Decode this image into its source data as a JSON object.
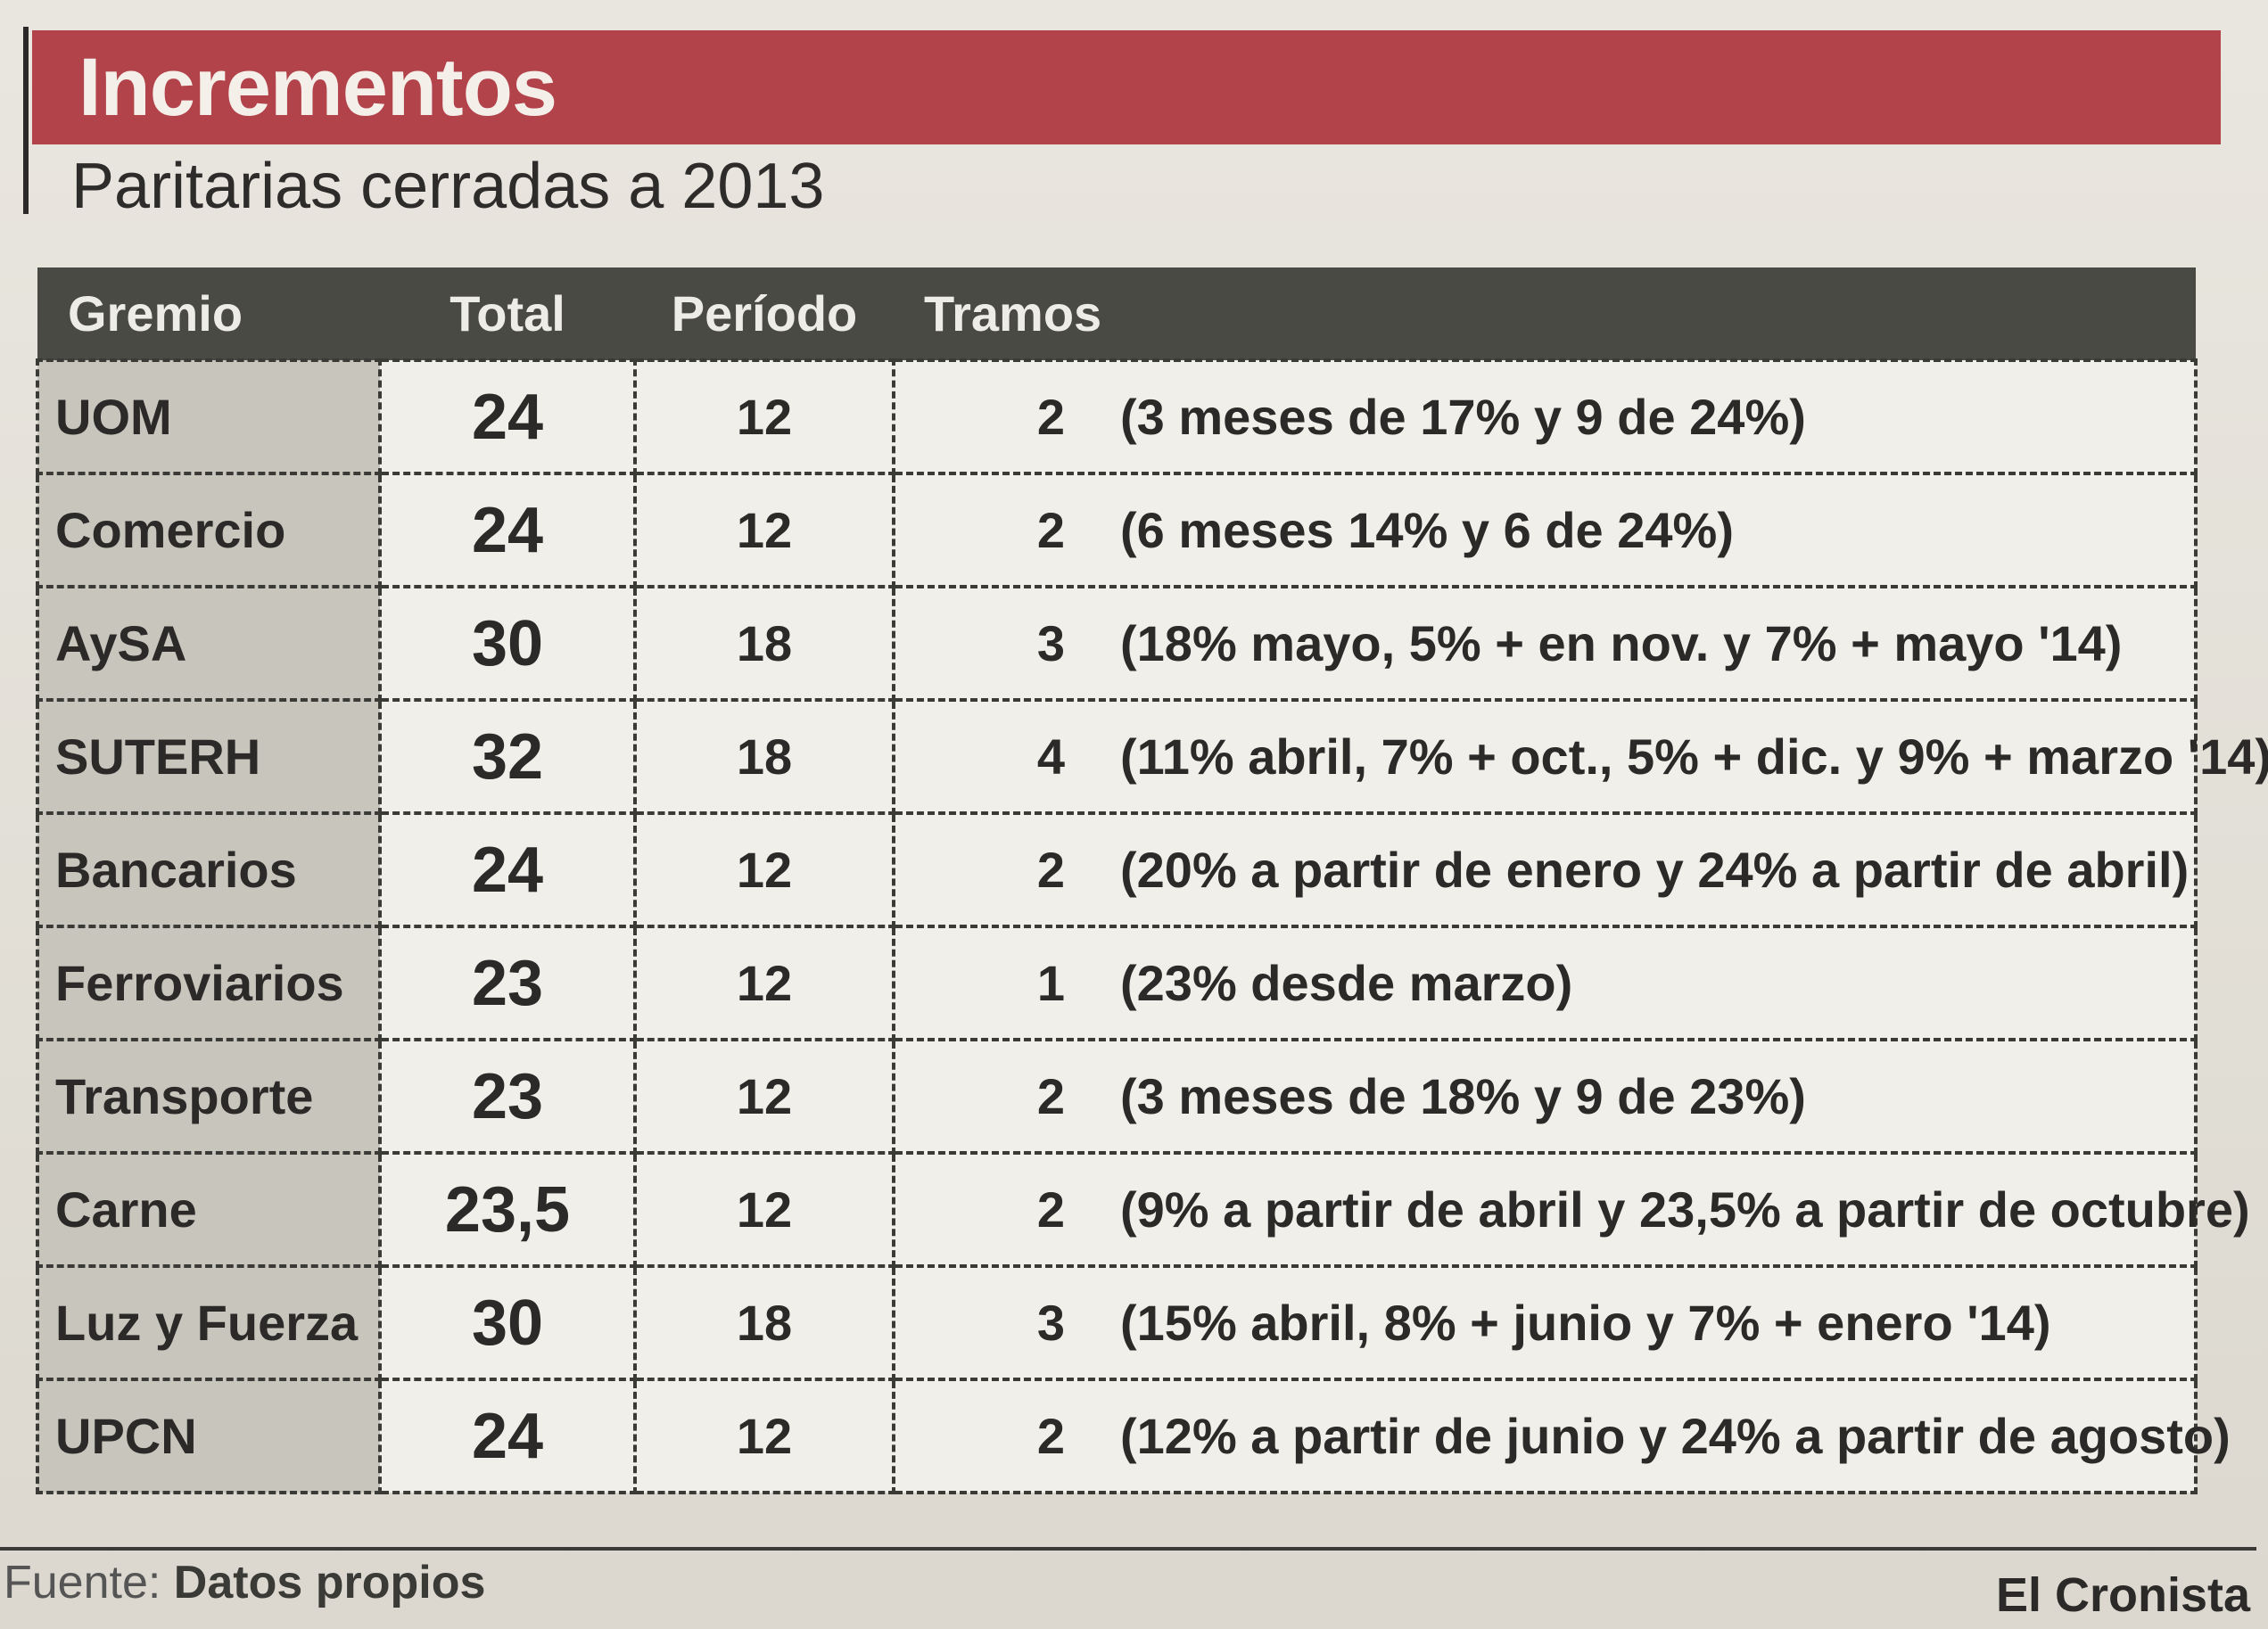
{
  "header": {
    "title": "Incrementos",
    "subtitle": "Paritarias cerradas a 2013"
  },
  "chart_data": {
    "type": "table",
    "columns": [
      "Gremio",
      "Total",
      "Período",
      "Tramos"
    ],
    "rows": [
      {
        "gremio": "UOM",
        "total": "24",
        "periodo": "12",
        "tramos": "2",
        "detalle": "(3 meses de 17% y 9 de 24%)"
      },
      {
        "gremio": "Comercio",
        "total": "24",
        "periodo": "12",
        "tramos": "2",
        "detalle": "(6 meses 14% y 6 de 24%)"
      },
      {
        "gremio": "AySA",
        "total": "30",
        "periodo": "18",
        "tramos": "3",
        "detalle": "(18% mayo, 5% + en nov. y 7% + mayo '14)"
      },
      {
        "gremio": "SUTERH",
        "total": "32",
        "periodo": "18",
        "tramos": "4",
        "detalle": "(11% abril, 7% + oct., 5% + dic. y 9% + marzo '14)"
      },
      {
        "gremio": "Bancarios",
        "total": "24",
        "periodo": "12",
        "tramos": "2",
        "detalle": "(20% a partir de enero y 24% a partir de abril)"
      },
      {
        "gremio": "Ferroviarios",
        "total": "23",
        "periodo": "12",
        "tramos": "1",
        "detalle": "(23% desde marzo)"
      },
      {
        "gremio": "Transporte",
        "total": "23",
        "periodo": "12",
        "tramos": "2",
        "detalle": "(3 meses de 18% y 9 de 23%)"
      },
      {
        "gremio": "Carne",
        "total": "23,5",
        "periodo": "12",
        "tramos": "2",
        "detalle": "(9% a partir de abril y 23,5% a partir de octubre)"
      },
      {
        "gremio": "Luz y Fuerza",
        "total": "30",
        "periodo": "18",
        "tramos": "3",
        "detalle": "(15% abril, 8% + junio y 7% + enero '14)"
      },
      {
        "gremio": "UPCN",
        "total": "24",
        "periodo": "12",
        "tramos": "2",
        "detalle": "(12% a partir de junio y 24% a partir de agosto)"
      }
    ]
  },
  "footer": {
    "source_label": "Fuente:",
    "source_value": "Datos propios",
    "brand": "El Cronista"
  },
  "colors": {
    "title_bar": "#b2434a",
    "table_header": "#4a4a44",
    "gremio_cell": "#c8c5bd",
    "value_cell": "#f1efea"
  }
}
